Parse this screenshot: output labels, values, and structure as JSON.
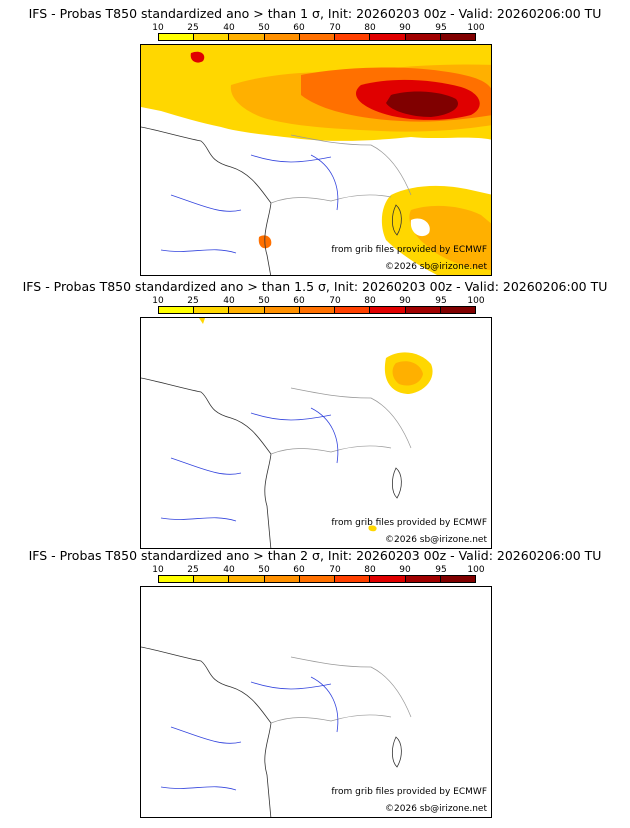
{
  "legend": {
    "ticks": [
      "10",
      "25",
      "40",
      "50",
      "60",
      "70",
      "80",
      "90",
      "95",
      "100"
    ],
    "colors": [
      "#ffff00",
      "#ffd700",
      "#ffb000",
      "#ff9000",
      "#ff7000",
      "#ff4000",
      "#e00000",
      "#a00000",
      "#800000"
    ]
  },
  "panels": [
    {
      "title": "IFS - Probas T850  standardized ano > than 1 σ, Init: 20260203 00z - Valid: 20260206:00 TU"
    },
    {
      "title": "IFS - Probas T850  standardized ano > than 1.5 σ, Init: 20260203 00z - Valid: 20260206:00 TU"
    },
    {
      "title": "IFS - Probas T850  standardized ano > than 2 σ, Init: 20260203 00z - Valid: 20260206:00 TU"
    }
  ],
  "credit": {
    "source": "from grib files provided by ECMWF",
    "copyright": "©2026 sb@irizone.net"
  }
}
